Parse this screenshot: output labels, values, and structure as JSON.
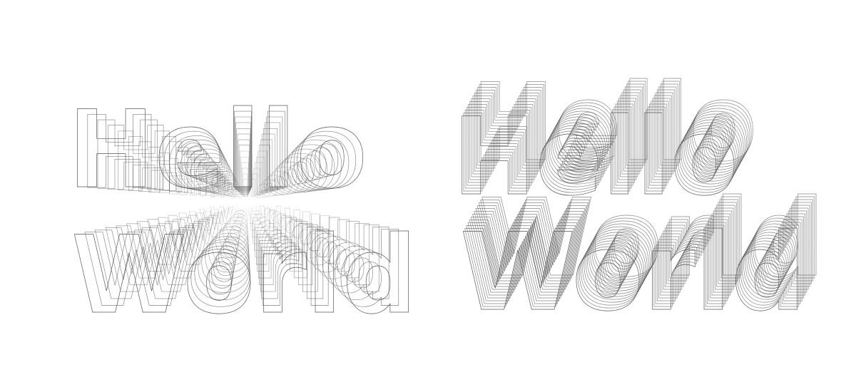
{
  "colors": {
    "background": "#ffffff",
    "stroke": "#555555"
  },
  "artworks": [
    {
      "style": "radial-extrusion",
      "lines": [
        "Hello",
        "World"
      ]
    },
    {
      "style": "block-extrusion",
      "lines": [
        "Hello",
        "World"
      ]
    }
  ]
}
